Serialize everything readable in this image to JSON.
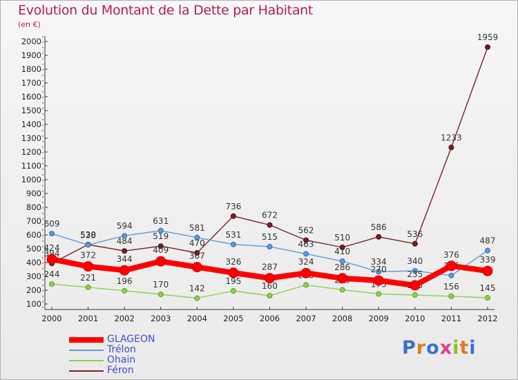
{
  "title": "Evolution du Montant de la Dette par Habitant",
  "unit": "(en €)",
  "logo": {
    "text": "Proxiti"
  },
  "chart_data": {
    "type": "line",
    "title": "Evolution du Montant de la Dette par Habitant",
    "ylabel": "(en €)",
    "xlabel": "",
    "x": [
      "2000",
      "2001",
      "2002",
      "2003",
      "2004",
      "2005",
      "2006",
      "2007",
      "2008",
      "2009",
      "2010",
      "2011",
      "2012"
    ],
    "ylim": [
      100,
      2000
    ],
    "yticks": [
      100,
      200,
      300,
      400,
      500,
      600,
      700,
      800,
      900,
      1000,
      1100,
      1200,
      1300,
      1400,
      1500,
      1600,
      1700,
      1800,
      1900,
      2000
    ],
    "grid": false,
    "legend": "bottom-left",
    "series": [
      {
        "name": "GLAGEON",
        "color": "#ff0000",
        "values": [
          424,
          372,
          344,
          409,
          367,
          326,
          287,
          324,
          286,
          270,
          235,
          376,
          339
        ]
      },
      {
        "name": "Trélon",
        "color": "#5b9bd5",
        "values": [
          609,
          528,
          594,
          631,
          581,
          531,
          515,
          463,
          410,
          334,
          340,
          306,
          487
        ]
      },
      {
        "name": "Ohain",
        "color": "#8ed04e",
        "values": [
          244,
          221,
          196,
          170,
          142,
          195,
          160,
          238,
          203,
          173,
          165,
          156,
          145
        ]
      },
      {
        "name": "Féron",
        "color": "#7a1f24",
        "values": [
          394,
          530,
          484,
          519,
          470,
          736,
          672,
          562,
          510,
          586,
          536,
          1233,
          1959
        ]
      }
    ]
  }
}
